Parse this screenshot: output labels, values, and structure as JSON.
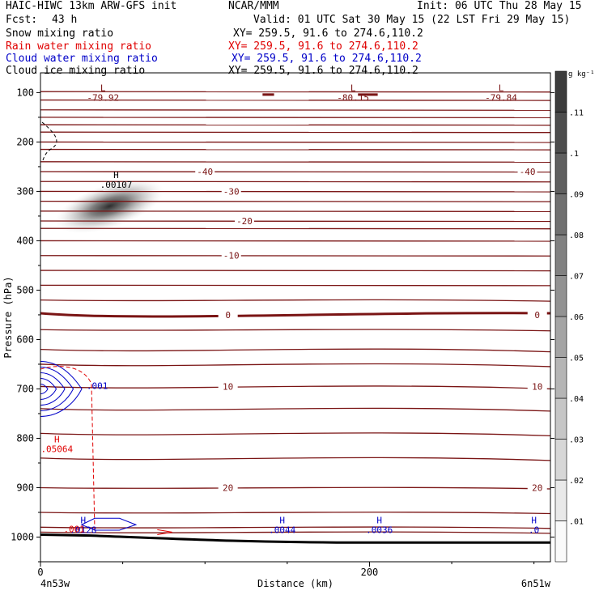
{
  "header": {
    "model": "HAIC-HIWC 13km ARW-GFS init",
    "org": "NCAR/MMM",
    "init": "Init: 06 UTC Thu 28 May 15",
    "fcst_label": "Fcst:",
    "fcst_value": "43 h",
    "valid": "Valid: 01 UTC Sat 30 May 15 (22 LST Fri 29 May 15)",
    "fields": [
      {
        "name": "Snow mixing ratio",
        "xy": "XY= 259.5, 91.6 to 274.6,110.2",
        "color": "#000000"
      },
      {
        "name": "Rain water mixing ratio",
        "xy": "XY= 259.5, 91.6 to 274.6,110.2",
        "color": "#e00000"
      },
      {
        "name": "Cloud water mixing ratio",
        "xy": "XY= 259.5, 91.6 to 274.6,110.2",
        "color": "#0000c8"
      },
      {
        "name": "Cloud ice mixing ratio",
        "xy": "XY= 259.5, 91.6 to 274.6,110.2",
        "color": "#000000"
      }
    ]
  },
  "chart_data": {
    "type": "contour cross-section",
    "xlabel": "Distance (km)",
    "ylabel": "Pressure (hPa)",
    "xlim": [
      0,
      310
    ],
    "ylim": [
      1050,
      60
    ],
    "x_ticks": [
      "0",
      "200"
    ],
    "x_tick_values": [
      0,
      200
    ],
    "y_ticks": [
      "100",
      "200",
      "300",
      "400",
      "500",
      "600",
      "700",
      "800",
      "900",
      "1000"
    ],
    "y_tick_values": [
      100,
      200,
      300,
      400,
      500,
      600,
      700,
      800,
      900,
      1000
    ],
    "x_start_label": "4n53w",
    "x_end_label": "6n51w",
    "colorbar": {
      "unit": "g kg⁻¹",
      "ticks": [
        ".01",
        ".02",
        ".03",
        ".04",
        ".05",
        ".06",
        ".07",
        ".08",
        ".09",
        ".1",
        ".11"
      ],
      "tick_values": [
        0.01,
        0.02,
        0.03,
        0.04,
        0.05,
        0.06,
        0.07,
        0.08,
        0.09,
        0.1,
        0.11
      ]
    },
    "temperature_contours": [
      {
        "label": "-40",
        "pressure": 260
      },
      {
        "label": "-30",
        "pressure": 300
      },
      {
        "label": "-20",
        "pressure": 360
      },
      {
        "label": "-10",
        "pressure": 430
      },
      {
        "label": "0",
        "pressure": 550
      },
      {
        "label": "10",
        "pressure": 695
      },
      {
        "label": "20",
        "pressure": 900
      }
    ],
    "extrema_labels": [
      {
        "symbol": "L",
        "value": "-79.92",
        "x": 38,
        "p": 97,
        "color": "#7a1414"
      },
      {
        "symbol": "L",
        "value": "-80.15",
        "x": 190,
        "p": 97,
        "color": "#7a1414"
      },
      {
        "symbol": "L",
        "value": "-79.84",
        "x": 280,
        "p": 97,
        "color": "#7a1414"
      },
      {
        "symbol": "H",
        "value": ".00107",
        "x": 46,
        "p": 273,
        "color": "#000000"
      },
      {
        "symbol": "H",
        "value": ".05064",
        "x": 10,
        "p": 808,
        "color": "#e00000"
      },
      {
        "symbol": "H",
        "value": ".0128",
        "x": 26,
        "p": 972,
        "color": "#0000c8"
      },
      {
        "symbol": "H",
        "value": ".0044",
        "x": 147,
        "p": 972,
        "color": "#0000c8"
      },
      {
        "symbol": "H",
        "value": ".0036",
        "x": 206,
        "p": 972,
        "color": "#0000c8"
      },
      {
        "symbol": "H",
        "value": ".0",
        "x": 300,
        "p": 972,
        "color": "#0000c8"
      }
    ],
    "other_labels": [
      {
        "value": ".001",
        "x": 28,
        "p": 700,
        "color": "#0000c8"
      },
      {
        "value": ".001",
        "x": 14,
        "p": 990,
        "color": "#e00000"
      }
    ]
  }
}
